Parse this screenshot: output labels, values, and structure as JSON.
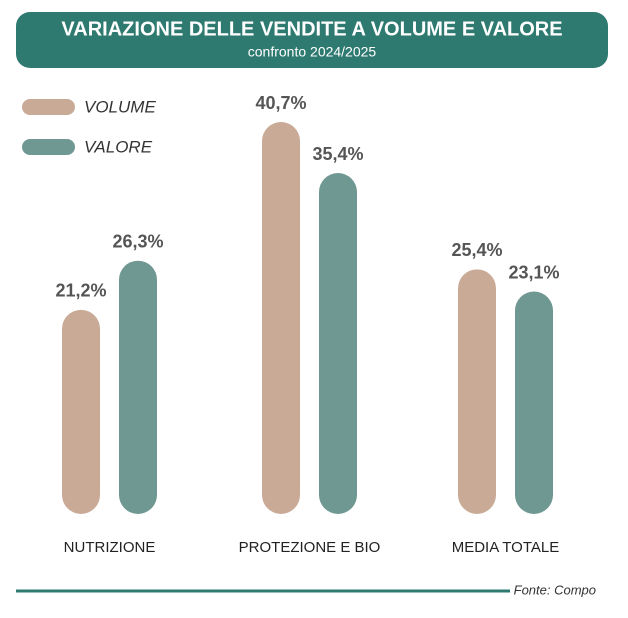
{
  "chart_data": {
    "type": "bar",
    "title": "VARIAZIONE DELLE VENDITE A VOLUME E VALORE",
    "subtitle": "confronto 2024/2025",
    "source": "Fonte: Compo",
    "categories": [
      "NUTRIZIONE",
      "PROTEZIONE E BIO",
      "MEDIA TOTALE"
    ],
    "series": [
      {
        "name": "VOLUME",
        "color": "#c9aa96",
        "values": [
          21.2,
          40.7,
          25.4
        ],
        "value_labels": [
          "21,2%",
          "40,7%",
          "25,4%"
        ]
      },
      {
        "name": "VALORE",
        "color": "#709892",
        "values": [
          26.3,
          35.4,
          23.1
        ],
        "value_labels": [
          "26,3%",
          "35,4%",
          "23,1%"
        ]
      }
    ],
    "legend": "top-left"
  }
}
